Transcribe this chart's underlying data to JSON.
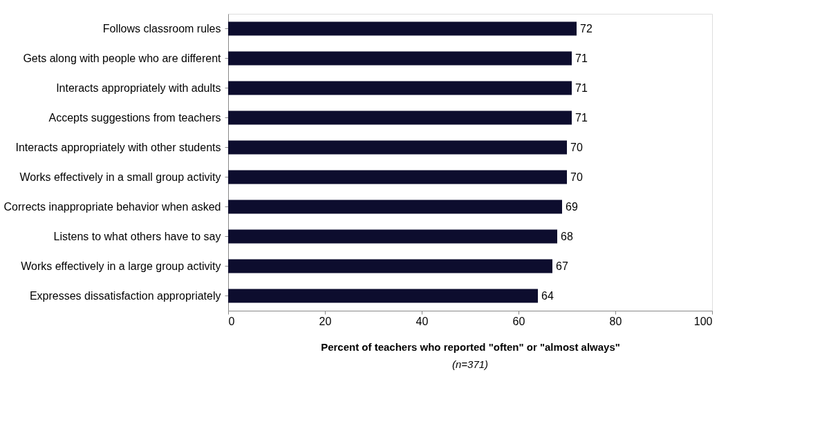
{
  "chart_data": {
    "type": "bar",
    "orientation": "horizontal",
    "categories": [
      "Follows classroom rules",
      "Gets along with people who are different",
      "Interacts appropriately with adults",
      "Accepts suggestions from teachers",
      "Interacts appropriately with other students",
      "Works effectively in a small group activity",
      "Corrects inappropriate behavior when asked",
      "Listens to what others have to say",
      "Works effectively in a large group activity",
      "Expresses dissatisfaction appropriately"
    ],
    "values": [
      72,
      71,
      71,
      71,
      70,
      70,
      69,
      68,
      67,
      64
    ],
    "color": "#0d0d2e",
    "xlim": [
      0,
      100
    ],
    "xticks": [
      0,
      20,
      40,
      60,
      80,
      100
    ],
    "xlabel": "Percent of teachers who reported \"often\" or \"almost always\"",
    "annotations": [
      "(n=371)"
    ],
    "data_labels": true,
    "grid": false
  }
}
